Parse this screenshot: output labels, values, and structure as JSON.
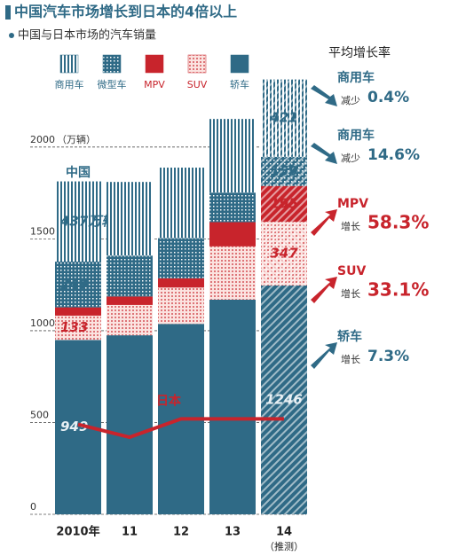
{
  "chart_data": {
    "type": "bar",
    "title": "中国汽车市场增长到日本的4倍以上",
    "subtitle": "中国与日本市场的汽车销量",
    "y_unit": "（万辆）",
    "china_label": "中国",
    "categories": [
      "2010年",
      "11",
      "12",
      "13",
      "14"
    ],
    "x_note": "（推测）",
    "ylim": [
      0,
      2400
    ],
    "yticks": [
      0,
      500,
      1000,
      1500,
      2000
    ],
    "grid": true,
    "series": [
      {
        "name": "轿车",
        "color": "#2f6a86",
        "pattern": "solid",
        "values": [
          949,
          975,
          1037,
          1169,
          1246
        ],
        "value_labels": [
          "949",
          null,
          null,
          null,
          "1246"
        ]
      },
      {
        "name": "SUV",
        "color": "#c8242c",
        "pattern": "dots",
        "values": [
          133,
          165,
          198,
          290,
          347
        ],
        "value_labels": [
          "133",
          null,
          null,
          null,
          "347"
        ]
      },
      {
        "name": "MPV",
        "color": "#c8242c",
        "pattern": "solid",
        "values": [
          45,
          46,
          50,
          132,
          195
        ],
        "value_labels": [
          "45",
          null,
          null,
          null,
          "195"
        ]
      },
      {
        "name": "微型车",
        "color": "#2f6a86",
        "pattern": "dots",
        "values": [
          249,
          223,
          219,
          161,
          159
        ],
        "value_labels": [
          "249",
          null,
          null,
          null,
          "159"
        ]
      },
      {
        "name": "商用车",
        "color": "#2f6a86",
        "pattern": "stripes",
        "values": [
          437,
          401,
          384,
          401,
          421
        ],
        "value_labels": [
          "437万辆",
          null,
          null,
          null,
          "421"
        ]
      }
    ],
    "line_series": {
      "name": "日本",
      "color": "#c8242c",
      "values": [
        490,
        420,
        520,
        520,
        520
      ]
    },
    "rates_title": "平均增长率",
    "rates": [
      {
        "name": "商用车",
        "change": "减少",
        "value": -0.4,
        "label": "0.4%"
      },
      {
        "name": "商用车",
        "change": "减少",
        "value": -14.6,
        "label": "14.6%"
      },
      {
        "name": "MPV",
        "change": "增长",
        "value": 58.3,
        "label": "58.3%"
      },
      {
        "name": "SUV",
        "change": "增长",
        "value": 33.1,
        "label": "33.1%"
      },
      {
        "name": "轿车",
        "change": "增长",
        "value": 7.3,
        "label": "7.3%"
      }
    ]
  }
}
